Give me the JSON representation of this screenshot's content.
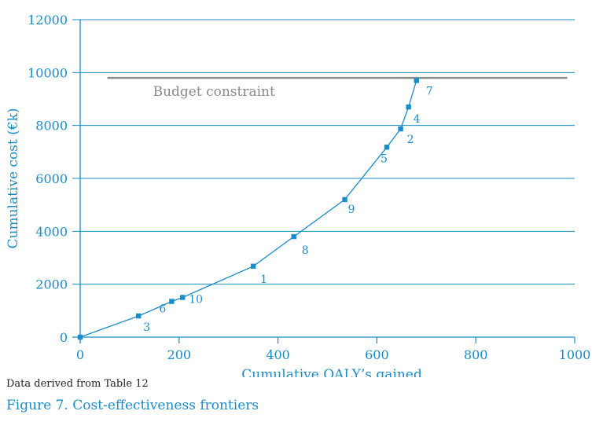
{
  "chart_data": {
    "type": "line",
    "xlabel": "Cumulative QALY’s gained",
    "ylabel": "Cumulative cost (€k)",
    "xlim": [
      0,
      1000
    ],
    "ylim": [
      0,
      12000
    ],
    "x_ticks": [
      "0",
      "200",
      "400",
      "600",
      "800",
      "1000"
    ],
    "y_ticks": [
      "0",
      "2000",
      "4000",
      "6000",
      "8000",
      "10000",
      "12000"
    ],
    "grid": "horizontal",
    "series": [
      {
        "points": [
          {
            "x": 0,
            "y": 0,
            "label": ""
          },
          {
            "x": 118,
            "y": 800,
            "label": "3"
          },
          {
            "x": 185,
            "y": 1350,
            "label": "6"
          },
          {
            "x": 207,
            "y": 1500,
            "label": "10"
          },
          {
            "x": 350,
            "y": 2680,
            "label": "1"
          },
          {
            "x": 432,
            "y": 3800,
            "label": "8"
          },
          {
            "x": 535,
            "y": 5200,
            "label": "9"
          },
          {
            "x": 620,
            "y": 7180,
            "label": "5"
          },
          {
            "x": 648,
            "y": 7870,
            "label": "2"
          },
          {
            "x": 664,
            "y": 8700,
            "label": "4"
          },
          {
            "x": 680,
            "y": 9700,
            "label": "7"
          }
        ]
      }
    ],
    "reference_line": {
      "label": "Budget constraint",
      "y": 9800,
      "x_from": 55,
      "x_to": 985
    },
    "colors": {
      "series": "#1a8cc7",
      "grid": "#1a8cc7",
      "reference": "#8a8a8a"
    }
  },
  "caption": {
    "source": "Data derived from Table 12",
    "figure_title": "Figure 7. Cost-effectiveness frontiers"
  }
}
